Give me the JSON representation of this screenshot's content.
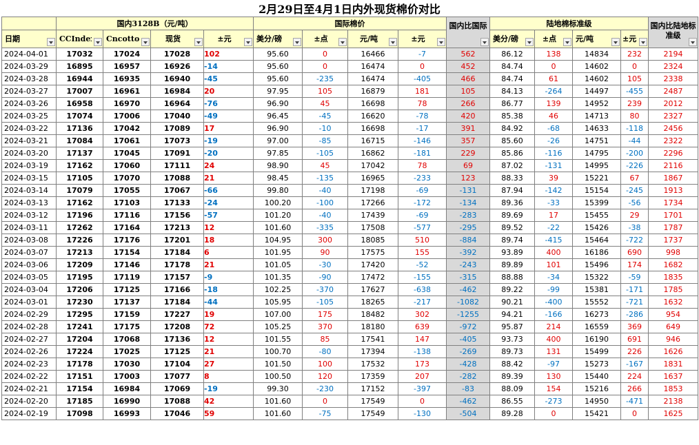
{
  "title": "2月29日至4月1日内外现货棉价对比",
  "groups": {
    "domestic": "国内3128B（元/吨）",
    "intl": "国际棉价",
    "landed": "陆地棉标准级"
  },
  "headers": {
    "date": "日期",
    "ccindex": "CCIndex",
    "cncotton": "Cncotton",
    "spot": "现货",
    "chg": "±元",
    "usd": "美分/磅",
    "pts": "±点",
    "cny": "元/吨",
    "chg2": "±元",
    "diff": "国内比国际",
    "l_usd": "美分/磅",
    "l_cny": "元/吨",
    "l_chg": "±元",
    "l_diff": "国内比陆地标准级"
  },
  "rows": [
    [
      "2024-04-01",
      "17032",
      "17024",
      "17028",
      "102",
      "95.60",
      "0",
      "16466",
      "-7",
      "562",
      "86.12",
      "138",
      "14834",
      "232",
      "2194"
    ],
    [
      "2024-03-29",
      "16895",
      "16957",
      "16926",
      "-14",
      "95.60",
      "0",
      "16474",
      "0",
      "452",
      "84.74",
      "0",
      "14602",
      "0",
      "2324"
    ],
    [
      "2024-03-28",
      "16944",
      "16935",
      "16940",
      "-45",
      "95.60",
      "-235",
      "16474",
      "-405",
      "466",
      "84.74",
      "61",
      "14602",
      "105",
      "2338"
    ],
    [
      "2024-03-27",
      "17007",
      "16961",
      "16984",
      "20",
      "97.95",
      "105",
      "16879",
      "181",
      "105",
      "84.13",
      "-264",
      "14497",
      "-455",
      "2487"
    ],
    [
      "2024-03-26",
      "16958",
      "16970",
      "16964",
      "-76",
      "96.90",
      "45",
      "16698",
      "78",
      "266",
      "86.77",
      "139",
      "14952",
      "239",
      "2012"
    ],
    [
      "2024-03-25",
      "17074",
      "17006",
      "17040",
      "-49",
      "96.45",
      "-45",
      "16620",
      "-78",
      "420",
      "85.38",
      "46",
      "14713",
      "80",
      "2327"
    ],
    [
      "2024-03-22",
      "17136",
      "17042",
      "17089",
      "17",
      "96.90",
      "-10",
      "16698",
      "-17",
      "391",
      "84.92",
      "-68",
      "14633",
      "-118",
      "2456"
    ],
    [
      "2024-03-21",
      "17084",
      "17061",
      "17073",
      "-19",
      "97.00",
      "-85",
      "16715",
      "-146",
      "357",
      "85.60",
      "-26",
      "14751",
      "-44",
      "2322"
    ],
    [
      "2024-03-20",
      "17137",
      "17045",
      "17091",
      "-20",
      "97.85",
      "-105",
      "16862",
      "-181",
      "229",
      "85.86",
      "-116",
      "14795",
      "-200",
      "2296"
    ],
    [
      "2024-03-19",
      "17162",
      "17060",
      "17111",
      "24",
      "98.90",
      "45",
      "17042",
      "78",
      "69",
      "87.02",
      "-131",
      "14995",
      "-226",
      "2116"
    ],
    [
      "2024-03-15",
      "17105",
      "17070",
      "17088",
      "21",
      "98.45",
      "-135",
      "16965",
      "-233",
      "123",
      "88.33",
      "39",
      "15221",
      "67",
      "1867"
    ],
    [
      "2024-03-14",
      "17079",
      "17055",
      "17067",
      "-66",
      "99.80",
      "-40",
      "17198",
      "-69",
      "-131",
      "87.94",
      "-142",
      "15154",
      "-245",
      "1913"
    ],
    [
      "2024-03-13",
      "17162",
      "17103",
      "17133",
      "-24",
      "100.20",
      "-100",
      "17266",
      "-172",
      "-134",
      "89.36",
      "-33",
      "15399",
      "-56",
      "1734"
    ],
    [
      "2024-03-12",
      "17196",
      "17116",
      "17156",
      "-57",
      "101.20",
      "-40",
      "17439",
      "-69",
      "-283",
      "89.69",
      "17",
      "15455",
      "29",
      "1701"
    ],
    [
      "2024-03-11",
      "17262",
      "17164",
      "17213",
      "12",
      "101.60",
      "-335",
      "17508",
      "-577",
      "-295",
      "89.52",
      "-22",
      "15426",
      "-38",
      "1787"
    ],
    [
      "2024-03-08",
      "17226",
      "17176",
      "17201",
      "18",
      "104.95",
      "300",
      "18085",
      "510",
      "-884",
      "89.74",
      "-415",
      "15464",
      "-722",
      "1737"
    ],
    [
      "2024-03-07",
      "17213",
      "17154",
      "17184",
      "6",
      "101.95",
      "90",
      "17575",
      "155",
      "-392",
      "93.89",
      "400",
      "16186",
      "690",
      "998"
    ],
    [
      "2024-03-06",
      "17209",
      "17146",
      "17178",
      "21",
      "101.05",
      "-30",
      "17420",
      "-52",
      "-243",
      "89.89",
      "101",
      "15496",
      "174",
      "1682"
    ],
    [
      "2024-03-05",
      "17195",
      "17119",
      "17157",
      "-9",
      "101.35",
      "-90",
      "17472",
      "-155",
      "-315",
      "88.88",
      "-34",
      "15322",
      "-59",
      "1835"
    ],
    [
      "2024-03-04",
      "17206",
      "17125",
      "17166",
      "-18",
      "102.25",
      "-370",
      "17627",
      "-638",
      "-462",
      "89.22",
      "-99",
      "15381",
      "-171",
      "1785"
    ],
    [
      "2024-03-01",
      "17230",
      "17137",
      "17184",
      "-44",
      "105.95",
      "-105",
      "18265",
      "-217",
      "-1082",
      "90.21",
      "-400",
      "15552",
      "-721",
      "1632"
    ],
    [
      "2024-02-29",
      "17295",
      "17159",
      "17227",
      "19",
      "107.00",
      "175",
      "18482",
      "302",
      "-1255",
      "94.21",
      "-166",
      "16273",
      "-286",
      "954"
    ],
    [
      "2024-02-28",
      "17241",
      "17175",
      "17208",
      "72",
      "105.25",
      "370",
      "18180",
      "639",
      "-972",
      "95.87",
      "214",
      "16559",
      "369",
      "649"
    ],
    [
      "2024-02-27",
      "17204",
      "17068",
      "17136",
      "12",
      "101.55",
      "85",
      "17541",
      "147",
      "-405",
      "93.73",
      "400",
      "16190",
      "691",
      "946"
    ],
    [
      "2024-02-26",
      "17224",
      "17025",
      "17125",
      "21",
      "100.70",
      "-80",
      "17394",
      "-138",
      "-269",
      "89.73",
      "131",
      "15499",
      "226",
      "1626"
    ],
    [
      "2024-02-23",
      "17178",
      "17030",
      "17104",
      "27",
      "101.50",
      "100",
      "17532",
      "173",
      "-428",
      "88.42",
      "-97",
      "15273",
      "-167",
      "1831"
    ],
    [
      "2024-02-22",
      "17151",
      "17003",
      "17077",
      "8",
      "100.50",
      "120",
      "17359",
      "207",
      "-282",
      "89.39",
      "130",
      "15440",
      "224",
      "1637"
    ],
    [
      "2024-02-21",
      "17154",
      "16984",
      "17069",
      "-19",
      "99.30",
      "-230",
      "17152",
      "-397",
      "-83",
      "88.09",
      "154",
      "15216",
      "266",
      "1853"
    ],
    [
      "2024-02-20",
      "17185",
      "16990",
      "17088",
      "42",
      "101.60",
      "0",
      "17549",
      "0",
      "-462",
      "86.55",
      "-273",
      "14950",
      "-471",
      "2138"
    ],
    [
      "2024-02-19",
      "17098",
      "16993",
      "17046",
      "59",
      "101.60",
      "-75",
      "17549",
      "-130",
      "-504",
      "89.28",
      "0",
      "15421",
      "0",
      "1625"
    ]
  ]
}
